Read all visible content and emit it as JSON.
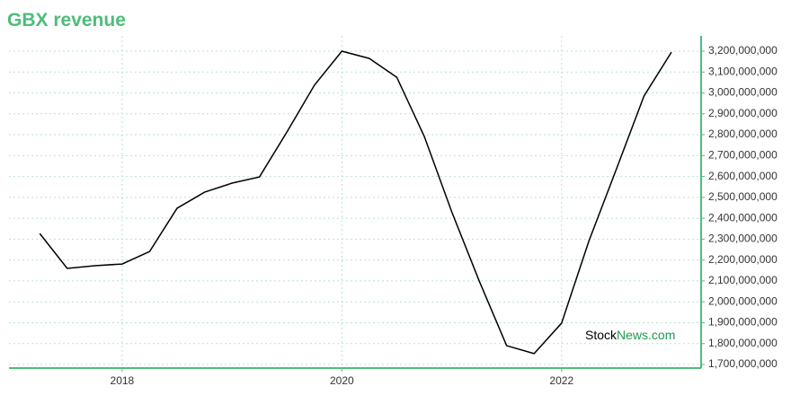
{
  "chart_data": {
    "type": "line",
    "title": "GBX revenue",
    "watermark": [
      "Stock",
      "News.com"
    ],
    "x": [
      2017.25,
      2017.5,
      2017.75,
      2018.0,
      2018.25,
      2018.5,
      2018.75,
      2019.0,
      2019.25,
      2019.5,
      2019.75,
      2020.0,
      2020.25,
      2020.5,
      2020.75,
      2021.0,
      2021.25,
      2021.5,
      2021.75,
      2022.0,
      2022.25,
      2022.5,
      2022.75,
      2023.0
    ],
    "series": [
      {
        "name": "Revenue",
        "color": "#000000",
        "values": [
          2327000000,
          2160000000,
          2173000000,
          2181000000,
          2241000000,
          2448000000,
          2525000000,
          2568000000,
          2598000000,
          2813000000,
          3037000000,
          3200000000,
          3165000000,
          3075000000,
          2792000000,
          2431000000,
          2100000000,
          1790000000,
          1752000000,
          1898000000,
          2293000000,
          2637000000,
          2985000000,
          3195000000
        ]
      }
    ],
    "xlim": [
      2016.97,
      2023.27
    ],
    "xticks": [
      2018,
      2020,
      2022
    ],
    "ylim": [
      1682800000,
      3273000000
    ],
    "yticks": [
      {
        "value": 1700000000,
        "label": "1,700,000,000"
      },
      {
        "value": 1800000000,
        "label": "1,800,000,000"
      },
      {
        "value": 1900000000,
        "label": "1,900,000,000"
      },
      {
        "value": 2000000000,
        "label": "2,000,000,000"
      },
      {
        "value": 2100000000,
        "label": "2,100,000,000"
      },
      {
        "value": 2200000000,
        "label": "2,200,000,000"
      },
      {
        "value": 2300000000,
        "label": "2,300,000,000"
      },
      {
        "value": 2400000000,
        "label": "2,400,000,000"
      },
      {
        "value": 2500000000,
        "label": "2,500,000,000"
      },
      {
        "value": 2600000000,
        "label": "2,600,000,000"
      },
      {
        "value": 2700000000,
        "label": "2,700,000,000"
      },
      {
        "value": 2800000000,
        "label": "2,800,000,000"
      },
      {
        "value": 2900000000,
        "label": "2,900,000,000"
      },
      {
        "value": 3000000000,
        "label": "3,000,000,000"
      },
      {
        "value": 3100000000,
        "label": "3,100,000,000"
      },
      {
        "value": 3200000000,
        "label": "3,200,000,000"
      }
    ],
    "grid": true,
    "axis_color": "#4dbd7a"
  }
}
